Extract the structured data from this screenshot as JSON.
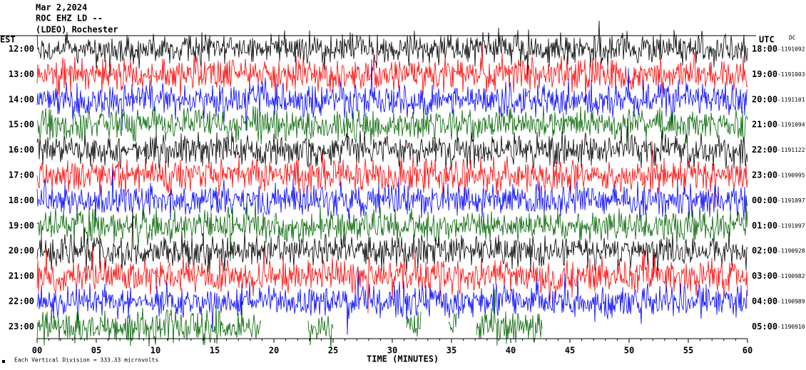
{
  "header": {
    "lines": [
      "Mar 2,2024",
      "ROC EHZ LD --",
      "(LDEO) Rochester"
    ]
  },
  "est_label": "EST",
  "utc_label": "UTC",
  "dc_label": "DC",
  "rows": [
    {
      "est": "12:00",
      "utc": "18:00",
      "dc": "-1191092",
      "color": "#000000"
    },
    {
      "est": "13:00",
      "utc": "19:00",
      "dc": "-1191003",
      "color": "#ff0000"
    },
    {
      "est": "14:00",
      "utc": "20:00",
      "dc": "-1191101",
      "color": "#0000ff"
    },
    {
      "est": "15:00",
      "utc": "21:00",
      "dc": "-1191094",
      "color": "#006400"
    },
    {
      "est": "16:00",
      "utc": "22:00",
      "dc": "-1191122",
      "color": "#000000"
    },
    {
      "est": "17:00",
      "utc": "23:00",
      "dc": "-1190995",
      "color": "#ff0000"
    },
    {
      "est": "18:00",
      "utc": "00:00",
      "dc": "-1191097",
      "color": "#0000ff"
    },
    {
      "est": "19:00",
      "utc": "01:00",
      "dc": "-1191097",
      "color": "#006400"
    },
    {
      "est": "20:00",
      "utc": "02:00",
      "dc": "-1190928",
      "color": "#000000"
    },
    {
      "est": "21:00",
      "utc": "03:00",
      "dc": "-1190982",
      "color": "#ff0000"
    },
    {
      "est": "22:00",
      "utc": "04:00",
      "dc": "-1190989",
      "color": "#0000ff"
    },
    {
      "est": "23:00",
      "utc": "05:00",
      "dc": "-1190910",
      "color": "#006400"
    }
  ],
  "x_axis": {
    "ticks": [
      "00",
      "05",
      "10",
      "15",
      "20",
      "25",
      "30",
      "35",
      "40",
      "45",
      "50",
      "55",
      "60"
    ],
    "title": "TIME (MINUTES)"
  },
  "footer": {
    "scale_note": "Each Vertical Division =  333.33 microvolts"
  }
}
